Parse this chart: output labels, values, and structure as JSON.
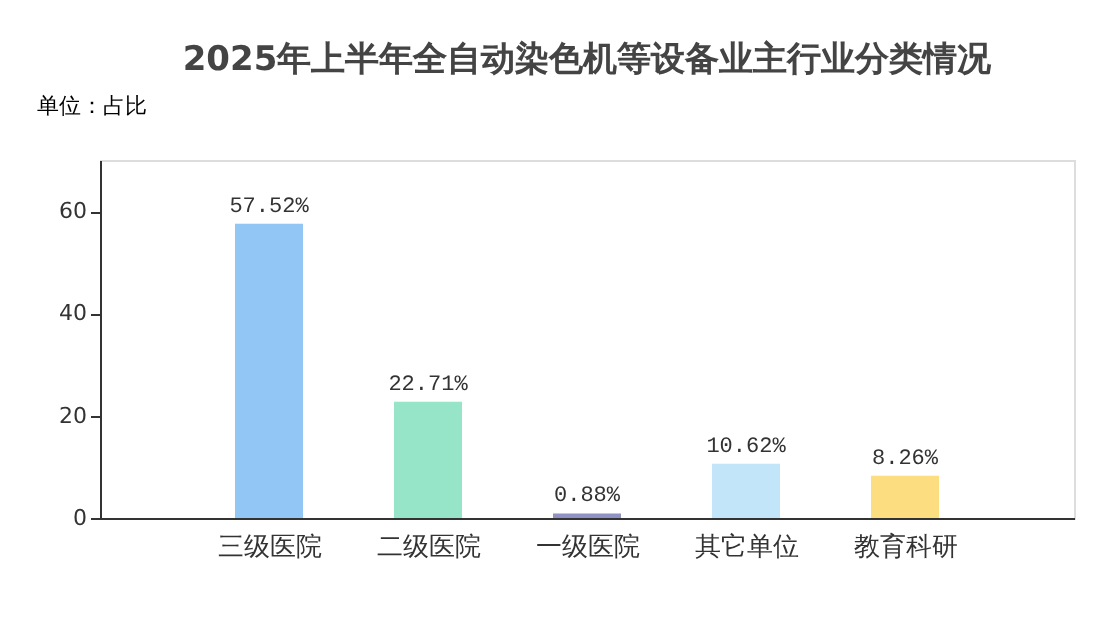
{
  "chart_data": {
    "type": "bar",
    "title": "2025年上半年全自动染色机等设备业主行业分类情况",
    "ylabel": "单位：占比",
    "categories": [
      "三级医院",
      "二级医院",
      "一级医院",
      "其它单位",
      "教育科研"
    ],
    "values": [
      57.52,
      22.71,
      0.88,
      10.62,
      8.26
    ],
    "value_labels": [
      "57.52%",
      "22.71%",
      "0.88%",
      "10.62%",
      "8.26%"
    ],
    "colors": [
      "#7fbcf2",
      "#84e0bf",
      "#7b7fb8",
      "#b8e0f8",
      "#fcd76a"
    ],
    "ylim": [
      0,
      70
    ],
    "yticks": [
      0,
      20,
      40,
      60
    ],
    "grid": false,
    "legend": false
  }
}
